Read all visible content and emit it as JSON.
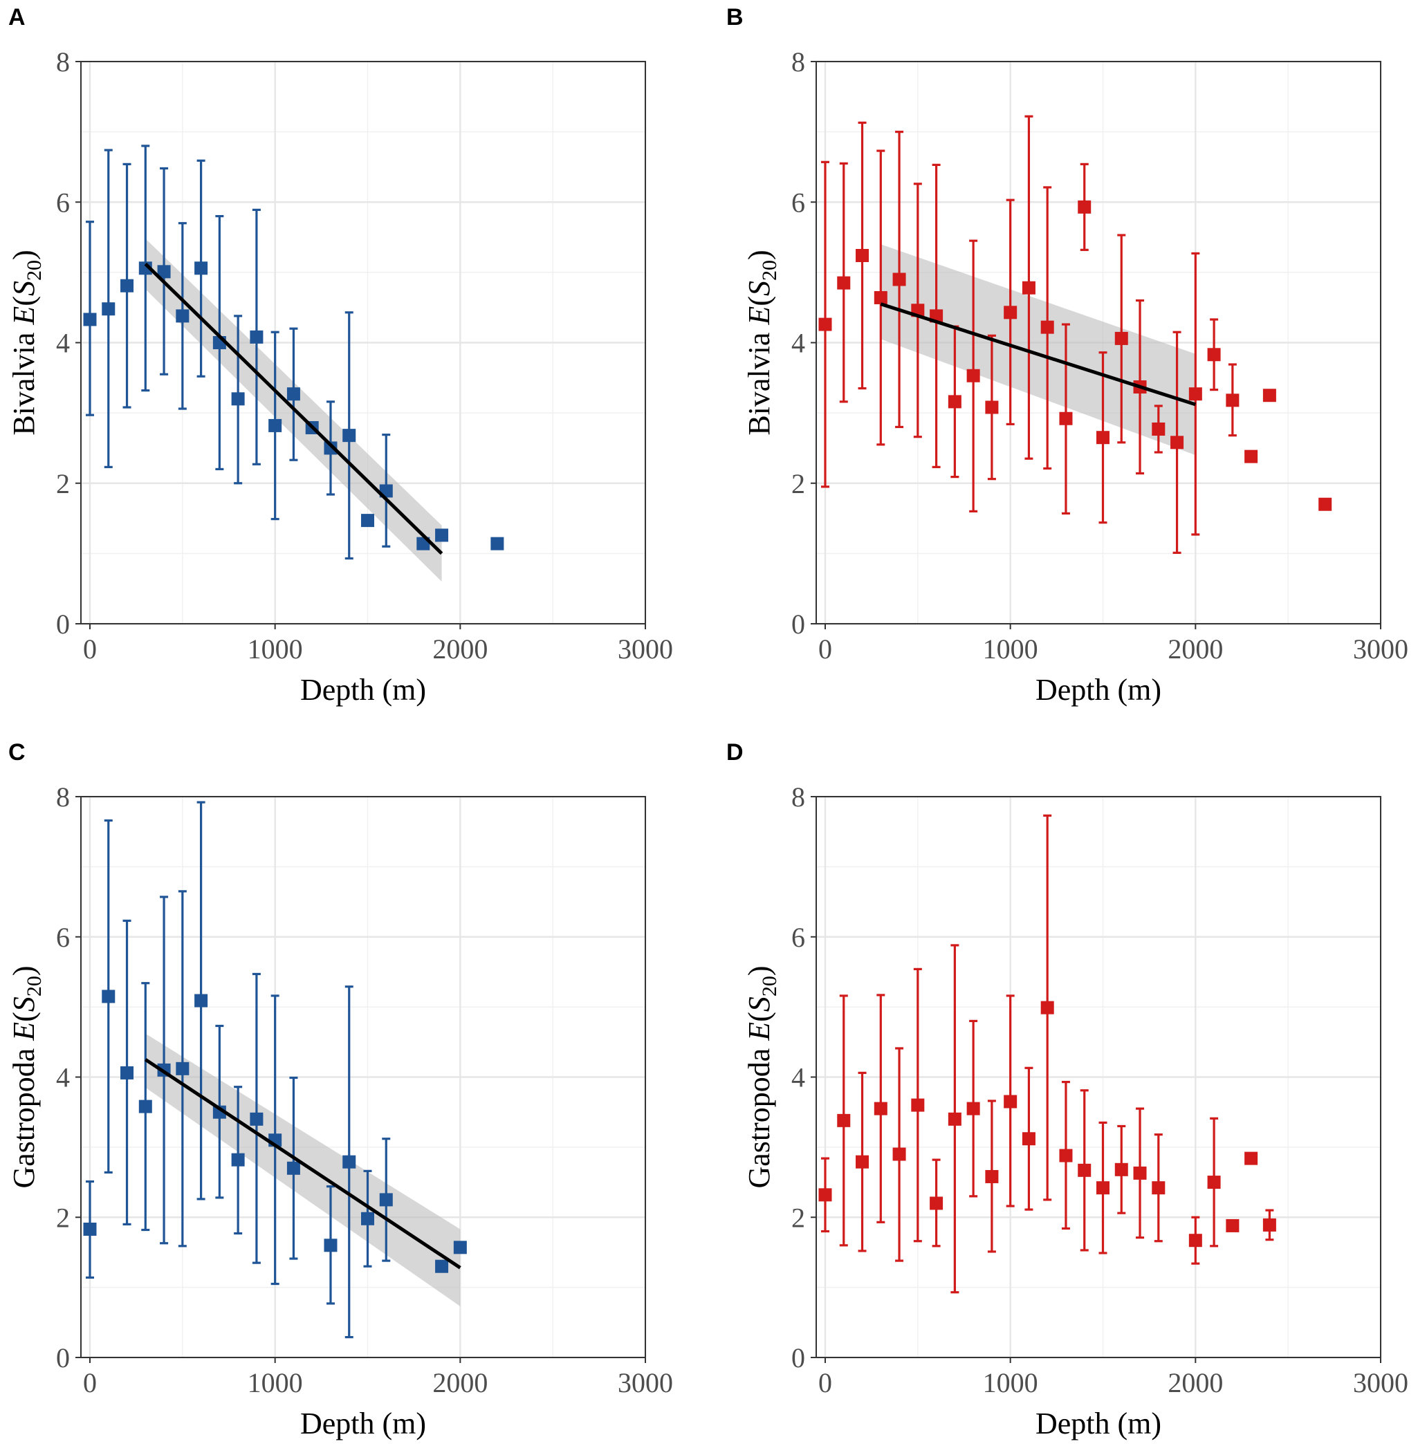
{
  "chart_data": [
    {
      "panel": "A",
      "type": "scatter",
      "color": "#1f5596",
      "xlabel": "Depth (m)",
      "ylabel": {
        "taxon": "Bivalvia",
        "stat": "E",
        "sym": "S",
        "sub": "20"
      },
      "xlim": [
        0,
        3000
      ],
      "ylim": [
        0,
        8
      ],
      "xticks": [
        0,
        1000,
        2000,
        3000
      ],
      "yticks": [
        0,
        2,
        4,
        6,
        8
      ],
      "points": [
        {
          "x": 0,
          "y": 4.33,
          "lo": 2.97,
          "hi": 5.72
        },
        {
          "x": 100,
          "y": 4.48,
          "lo": 2.23,
          "hi": 6.74
        },
        {
          "x": 200,
          "y": 4.81,
          "lo": 3.08,
          "hi": 6.54
        },
        {
          "x": 300,
          "y": 5.06,
          "lo": 3.32,
          "hi": 6.8
        },
        {
          "x": 400,
          "y": 5.01,
          "lo": 3.55,
          "hi": 6.48
        },
        {
          "x": 500,
          "y": 4.38,
          "lo": 3.06,
          "hi": 5.7
        },
        {
          "x": 600,
          "y": 5.06,
          "lo": 3.52,
          "hi": 6.59
        },
        {
          "x": 700,
          "y": 4.0,
          "lo": 2.2,
          "hi": 5.8
        },
        {
          "x": 800,
          "y": 3.2,
          "lo": 2.0,
          "hi": 4.38
        },
        {
          "x": 900,
          "y": 4.08,
          "lo": 2.27,
          "hi": 5.89
        },
        {
          "x": 1000,
          "y": 2.82,
          "lo": 1.49,
          "hi": 4.15
        },
        {
          "x": 1100,
          "y": 3.27,
          "lo": 2.33,
          "hi": 4.2
        },
        {
          "x": 1200,
          "y": 2.79
        },
        {
          "x": 1300,
          "y": 2.5,
          "lo": 1.84,
          "hi": 3.16
        },
        {
          "x": 1400,
          "y": 2.68,
          "lo": 0.93,
          "hi": 4.43
        },
        {
          "x": 1500,
          "y": 1.47
        },
        {
          "x": 1600,
          "y": 1.89,
          "lo": 1.1,
          "hi": 2.69
        },
        {
          "x": 1800,
          "y": 1.14
        },
        {
          "x": 1900,
          "y": 1.26
        },
        {
          "x": 2200,
          "y": 1.14
        }
      ],
      "fit": {
        "x": [
          300,
          1900
        ],
        "y": [
          5.12,
          1.0
        ],
        "ci_lo": [
          4.76,
          0.6
        ],
        "ci_hi": [
          5.48,
          1.4
        ]
      }
    },
    {
      "panel": "B",
      "type": "scatter",
      "color": "#d11a1a",
      "xlabel": "Depth (m)",
      "ylabel": {
        "taxon": "Bivalvia",
        "stat": "E",
        "sym": "S",
        "sub": "20"
      },
      "xlim": [
        0,
        3000
      ],
      "ylim": [
        0,
        8
      ],
      "xticks": [
        0,
        1000,
        2000,
        3000
      ],
      "yticks": [
        0,
        2,
        4,
        6,
        8
      ],
      "points": [
        {
          "x": 0,
          "y": 4.26,
          "lo": 1.95,
          "hi": 6.57
        },
        {
          "x": 100,
          "y": 4.85,
          "lo": 3.16,
          "hi": 6.55
        },
        {
          "x": 200,
          "y": 5.24,
          "lo": 3.35,
          "hi": 7.13
        },
        {
          "x": 300,
          "y": 4.64,
          "lo": 2.55,
          "hi": 6.73
        },
        {
          "x": 400,
          "y": 4.9,
          "lo": 2.8,
          "hi": 7.0
        },
        {
          "x": 500,
          "y": 4.46,
          "lo": 2.66,
          "hi": 6.26
        },
        {
          "x": 600,
          "y": 4.38,
          "lo": 2.23,
          "hi": 6.53
        },
        {
          "x": 700,
          "y": 3.16,
          "lo": 2.09,
          "hi": 4.23
        },
        {
          "x": 800,
          "y": 3.53,
          "lo": 1.6,
          "hi": 5.45
        },
        {
          "x": 900,
          "y": 3.08,
          "lo": 2.06,
          "hi": 4.1
        },
        {
          "x": 1000,
          "y": 4.43,
          "lo": 2.84,
          "hi": 6.03
        },
        {
          "x": 1100,
          "y": 4.78,
          "lo": 2.35,
          "hi": 7.22
        },
        {
          "x": 1200,
          "y": 4.22,
          "lo": 2.21,
          "hi": 6.21
        },
        {
          "x": 1300,
          "y": 2.92,
          "lo": 1.57,
          "hi": 4.26
        },
        {
          "x": 1400,
          "y": 5.93,
          "lo": 5.32,
          "hi": 6.54
        },
        {
          "x": 1500,
          "y": 2.65,
          "lo": 1.44,
          "hi": 3.86
        },
        {
          "x": 1600,
          "y": 4.06,
          "lo": 2.58,
          "hi": 5.53
        },
        {
          "x": 1700,
          "y": 3.37,
          "lo": 2.14,
          "hi": 4.6
        },
        {
          "x": 1800,
          "y": 2.77,
          "lo": 2.44,
          "hi": 3.1
        },
        {
          "x": 1900,
          "y": 2.58,
          "lo": 1.01,
          "hi": 4.15
        },
        {
          "x": 2000,
          "y": 3.27,
          "lo": 1.27,
          "hi": 5.27
        },
        {
          "x": 2100,
          "y": 3.83,
          "lo": 3.33,
          "hi": 4.33
        },
        {
          "x": 2200,
          "y": 3.18,
          "lo": 2.68,
          "hi": 3.69
        },
        {
          "x": 2300,
          "y": 2.38
        },
        {
          "x": 2400,
          "y": 3.25
        },
        {
          "x": 2700,
          "y": 1.7
        }
      ],
      "fit": {
        "x": [
          300,
          2000
        ],
        "y": [
          4.55,
          3.12
        ],
        "ci_lo": [
          4.05,
          2.4
        ],
        "ci_hi": [
          5.4,
          3.84
        ]
      }
    },
    {
      "panel": "C",
      "type": "scatter",
      "color": "#1f5596",
      "xlabel": "Depth (m)",
      "ylabel": {
        "taxon": "Gastropoda",
        "stat": "E",
        "sym": "S",
        "sub": "20"
      },
      "xlim": [
        0,
        3000
      ],
      "ylim": [
        0,
        8
      ],
      "xticks": [
        0,
        1000,
        2000,
        3000
      ],
      "yticks": [
        0,
        2,
        4,
        6,
        8
      ],
      "points": [
        {
          "x": 0,
          "y": 1.83,
          "lo": 1.14,
          "hi": 2.51
        },
        {
          "x": 100,
          "y": 5.15,
          "lo": 2.64,
          "hi": 7.66
        },
        {
          "x": 200,
          "y": 4.06,
          "lo": 1.9,
          "hi": 6.23
        },
        {
          "x": 300,
          "y": 3.58,
          "lo": 1.82,
          "hi": 5.34
        },
        {
          "x": 400,
          "y": 4.1,
          "lo": 1.63,
          "hi": 6.57
        },
        {
          "x": 500,
          "y": 4.12,
          "lo": 1.59,
          "hi": 6.65
        },
        {
          "x": 600,
          "y": 5.09,
          "lo": 2.26,
          "hi": 7.92
        },
        {
          "x": 700,
          "y": 3.5,
          "lo": 2.28,
          "hi": 4.73
        },
        {
          "x": 800,
          "y": 2.82,
          "lo": 1.77,
          "hi": 3.86
        },
        {
          "x": 900,
          "y": 3.4,
          "lo": 1.35,
          "hi": 5.47
        },
        {
          "x": 1000,
          "y": 3.1,
          "lo": 1.05,
          "hi": 5.16
        },
        {
          "x": 1100,
          "y": 2.7,
          "lo": 1.41,
          "hi": 3.99
        },
        {
          "x": 1300,
          "y": 1.6,
          "lo": 0.77,
          "hi": 2.44
        },
        {
          "x": 1400,
          "y": 2.79,
          "lo": 0.29,
          "hi": 5.29
        },
        {
          "x": 1500,
          "y": 1.98,
          "lo": 1.3,
          "hi": 2.66
        },
        {
          "x": 1600,
          "y": 2.25,
          "lo": 1.38,
          "hi": 3.12
        },
        {
          "x": 1900,
          "y": 1.3
        },
        {
          "x": 2000,
          "y": 1.57
        }
      ],
      "fit": {
        "x": [
          300,
          2000
        ],
        "y": [
          4.25,
          1.28
        ],
        "ci_lo": [
          3.85,
          0.73
        ],
        "ci_hi": [
          4.62,
          1.83
        ]
      }
    },
    {
      "panel": "D",
      "type": "scatter",
      "color": "#d11a1a",
      "xlabel": "Depth (m)",
      "ylabel": {
        "taxon": "Gastropoda",
        "stat": "E",
        "sym": "S",
        "sub": "20"
      },
      "xlim": [
        0,
        3000
      ],
      "ylim": [
        0,
        8
      ],
      "xticks": [
        0,
        1000,
        2000,
        3000
      ],
      "yticks": [
        0,
        2,
        4,
        6,
        8
      ],
      "points": [
        {
          "x": 0,
          "y": 2.32,
          "lo": 1.8,
          "hi": 2.84
        },
        {
          "x": 100,
          "y": 3.38,
          "lo": 1.6,
          "hi": 5.16
        },
        {
          "x": 200,
          "y": 2.79,
          "lo": 1.52,
          "hi": 4.06
        },
        {
          "x": 300,
          "y": 3.55,
          "lo": 1.93,
          "hi": 5.17
        },
        {
          "x": 400,
          "y": 2.9,
          "lo": 1.38,
          "hi": 4.41
        },
        {
          "x": 500,
          "y": 3.6,
          "lo": 1.66,
          "hi": 5.54
        },
        {
          "x": 600,
          "y": 2.2,
          "lo": 1.59,
          "hi": 2.82
        },
        {
          "x": 700,
          "y": 3.4,
          "lo": 0.93,
          "hi": 5.88
        },
        {
          "x": 800,
          "y": 3.55,
          "lo": 2.3,
          "hi": 4.8
        },
        {
          "x": 900,
          "y": 2.58,
          "lo": 1.51,
          "hi": 3.66
        },
        {
          "x": 1000,
          "y": 3.65,
          "lo": 2.16,
          "hi": 5.16
        },
        {
          "x": 1100,
          "y": 3.12,
          "lo": 2.11,
          "hi": 4.13
        },
        {
          "x": 1200,
          "y": 4.99,
          "lo": 2.25,
          "hi": 7.73
        },
        {
          "x": 1300,
          "y": 2.88,
          "lo": 1.84,
          "hi": 3.93
        },
        {
          "x": 1400,
          "y": 2.67,
          "lo": 1.53,
          "hi": 3.81
        },
        {
          "x": 1500,
          "y": 2.42,
          "lo": 1.49,
          "hi": 3.35
        },
        {
          "x": 1600,
          "y": 2.68,
          "lo": 2.06,
          "hi": 3.3
        },
        {
          "x": 1700,
          "y": 2.63,
          "lo": 1.71,
          "hi": 3.55
        },
        {
          "x": 1800,
          "y": 2.42,
          "lo": 1.66,
          "hi": 3.18
        },
        {
          "x": 2000,
          "y": 1.67,
          "lo": 1.34,
          "hi": 2.0
        },
        {
          "x": 2100,
          "y": 2.5,
          "lo": 1.59,
          "hi": 3.41
        },
        {
          "x": 2200,
          "y": 1.88
        },
        {
          "x": 2300,
          "y": 2.84
        },
        {
          "x": 2400,
          "y": 1.89,
          "lo": 1.68,
          "hi": 2.1
        }
      ],
      "fit": null
    }
  ]
}
